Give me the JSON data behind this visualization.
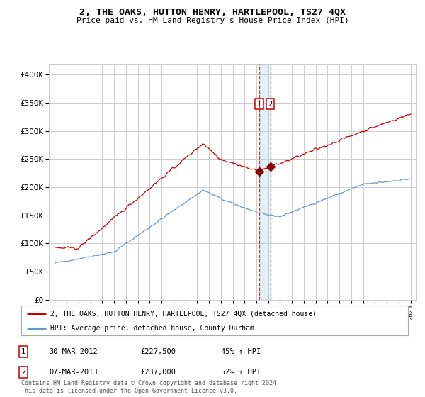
{
  "title": "2, THE OAKS, HUTTON HENRY, HARTLEPOOL, TS27 4QX",
  "subtitle": "Price paid vs. HM Land Registry's House Price Index (HPI)",
  "legend_line1": "2, THE OAKS, HUTTON HENRY, HARTLEPOOL, TS27 4QX (detached house)",
  "legend_line2": "HPI: Average price, detached house, County Durham",
  "footnote1": "Contains HM Land Registry data © Crown copyright and database right 2024.",
  "footnote2": "This data is licensed under the Open Government Licence v3.0.",
  "transaction1": {
    "label": "1",
    "date": "30-MAR-2012",
    "price": 227500,
    "price_str": "£227,500",
    "hpi": "45% ↑ HPI",
    "x": 2012.25
  },
  "transaction2": {
    "label": "2",
    "date": "07-MAR-2013",
    "price": 237000,
    "price_str": "£237,000",
    "hpi": "52% ↑ HPI",
    "x": 2013.17
  },
  "red_color": "#cc0000",
  "blue_color": "#6699cc",
  "marker_color": "#8b0000",
  "background_color": "#ffffff",
  "grid_color": "#cccccc",
  "ylim_max": 420000,
  "xlim_min": 1994.5,
  "xlim_max": 2025.5,
  "start_year": 1995,
  "end_year": 2025
}
